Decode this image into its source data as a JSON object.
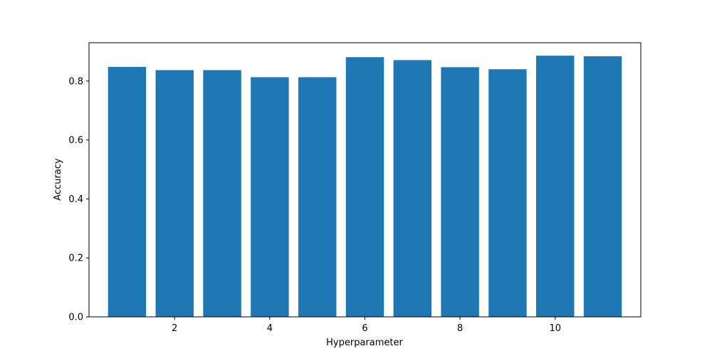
{
  "chart_data": {
    "type": "bar",
    "x": [
      1,
      2,
      3,
      4,
      5,
      6,
      7,
      8,
      9,
      10,
      11
    ],
    "values": [
      0.848,
      0.837,
      0.837,
      0.813,
      0.813,
      0.881,
      0.871,
      0.847,
      0.84,
      0.886,
      0.884
    ],
    "title": "",
    "xlabel": "Hyperparameter",
    "ylabel": "Accuracy",
    "xlim": [
      0.2,
      11.8
    ],
    "ylim": [
      0,
      0.93
    ],
    "xticks": [
      2,
      4,
      6,
      8,
      10
    ],
    "yticks": [
      0.0,
      0.2,
      0.4,
      0.6,
      0.8
    ],
    "ytick_labels": [
      "0.0",
      "0.2",
      "0.4",
      "0.6",
      "0.8"
    ],
    "bar_width": 0.8,
    "bar_color": "#1f77b4",
    "grid": false,
    "legend": "none"
  }
}
